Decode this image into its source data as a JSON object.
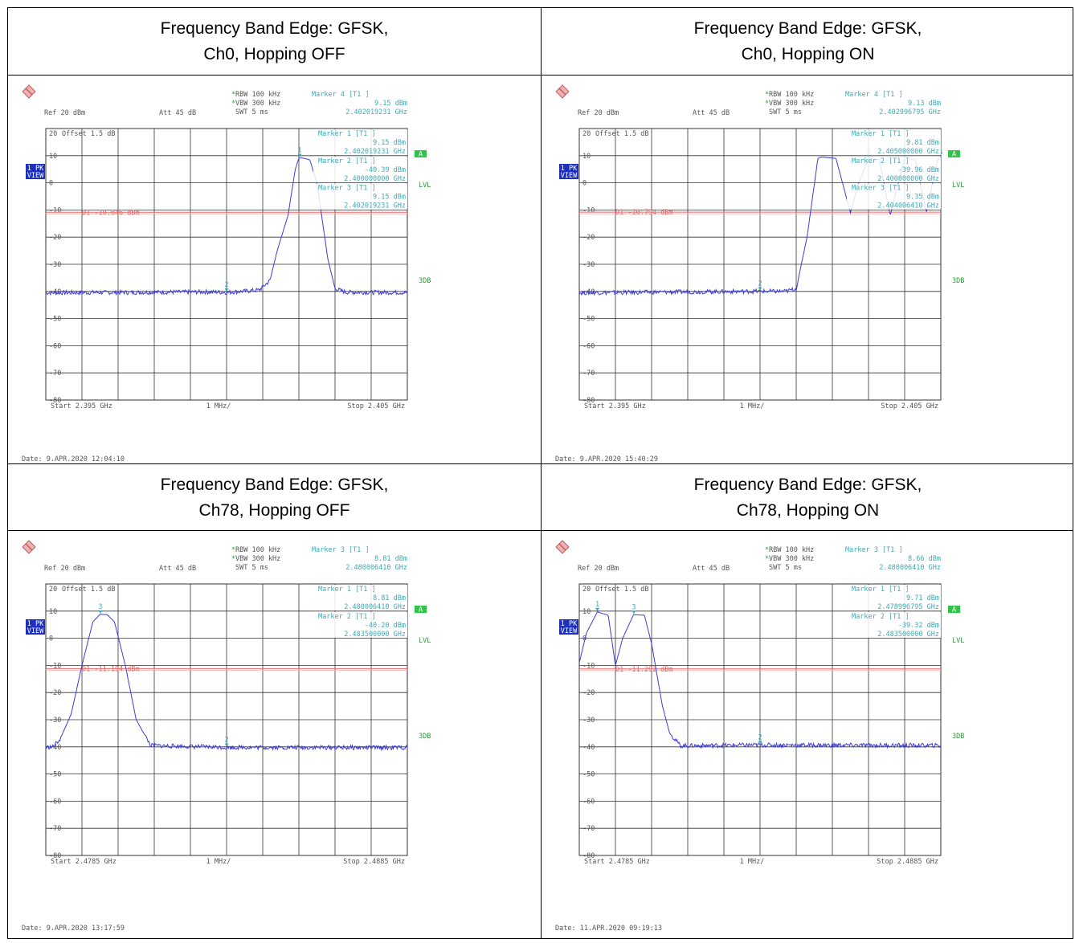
{
  "panels": [
    {
      "title_line1": "Frequency Band Edge: GFSK,",
      "title_line2": "Ch0, Hopping OFF",
      "date": "Date: 9.APR.2020  12:04:10",
      "rbw": "RBW 100 kHz",
      "vbw": "VBW 300 kHz",
      "swt": "SWT 5 ms",
      "ref": "Ref  20 dBm",
      "att": "Att  45 dB",
      "offset": "Offset  1.5 dB",
      "start": "Start  2.395 GHz",
      "span_div": "1 MHz/",
      "stop": "Stop  2.405 GHz",
      "d1_label": "D1  -10.846 dBm",
      "markers": [
        {
          "label": "Marker 4 [T1 ]",
          "level": "9.15 dBm",
          "freq": "2.402019231 GHz"
        },
        {
          "label": "Marker 1 [T1 ]",
          "level": "9.15 dBm",
          "freq": "2.402019231 GHz"
        },
        {
          "label": "Marker 2 [T1 ]",
          "level": "-40.39 dBm",
          "freq": "2.400000000 GHz"
        },
        {
          "label": "Marker 3 [T1 ]",
          "level": "9.15 dBm",
          "freq": "2.402019231 GHz"
        }
      ],
      "ylabels": [
        "20",
        "10",
        "0",
        "-10",
        "-20",
        "-30",
        "-40",
        "-50",
        "-60",
        "-70",
        "-80"
      ],
      "side_lvl": "LVL",
      "side_3db": "3DB",
      "side_a": "A",
      "pk1": "1 PK",
      "pk2": "VIEW",
      "chart_data": {
        "type": "line",
        "xlim": [
          2.395,
          2.405
        ],
        "ylim": [
          -80,
          20
        ],
        "d1": -10.846,
        "x": [
          2.395,
          2.3995,
          2.4,
          2.4009,
          2.4012,
          2.4014,
          2.4017,
          2.4019,
          2.402,
          2.4021,
          2.4023,
          2.4025,
          2.4028,
          2.403,
          2.4033,
          2.405
        ],
        "y": [
          -40.5,
          -40.2,
          -40.39,
          -39.5,
          -36,
          -25,
          -12,
          5,
          9.1,
          9.15,
          8.5,
          0,
          -28,
          -39,
          -40.3,
          -40.4
        ],
        "marker_points": [
          {
            "n": "2",
            "x": 2.4,
            "y": -40.39
          },
          {
            "n": "1",
            "x": 2.40202,
            "y": 9.15
          }
        ]
      }
    },
    {
      "title_line1": "Frequency Band Edge: GFSK,",
      "title_line2": "Ch0, Hopping ON",
      "date": "Date: 9.APR.2020  15:40:29",
      "rbw": "RBW 100 kHz",
      "vbw": "VBW 300 kHz",
      "swt": "SWT 5 ms",
      "ref": "Ref  20 dBm",
      "att": "Att  45 dB",
      "offset": "Offset  1.5 dB",
      "start": "Start  2.395 GHz",
      "span_div": "1 MHz/",
      "stop": "Stop  2.405 GHz",
      "d1_label": "D1  -10.794 dBm",
      "markers": [
        {
          "label": "Marker 4 [T1 ]",
          "level": "9.13 dBm",
          "freq": "2.402996795 GHz"
        },
        {
          "label": "Marker 1 [T1 ]",
          "level": "9.81 dBm",
          "freq": "2.405000000 GHz"
        },
        {
          "label": "Marker 2 [T1 ]",
          "level": "-39.96 dBm",
          "freq": "2.400000000 GHz"
        },
        {
          "label": "Marker 3 [T1 ]",
          "level": "9.35 dBm",
          "freq": "2.404006410 GHz"
        }
      ],
      "ylabels": [
        "20",
        "10",
        "0",
        "-10",
        "-20",
        "-30",
        "-40",
        "-50",
        "-60",
        "-70",
        "-80"
      ],
      "side_lvl": "LVL",
      "side_3db": "3DB",
      "side_a": "A",
      "pk1": "1 PK",
      "pk2": "VIEW",
      "chart_data": {
        "type": "line",
        "xlim": [
          2.395,
          2.405
        ],
        "ylim": [
          -80,
          20
        ],
        "d1": -10.794,
        "x": [
          2.395,
          2.4,
          2.4007,
          2.401,
          2.4013,
          2.4016,
          2.4017,
          2.4021,
          2.4025,
          2.4027,
          2.403,
          2.4033,
          2.4036,
          2.404,
          2.4043,
          2.4046,
          2.4049,
          2.405
        ],
        "y": [
          -40.5,
          -39.96,
          -40,
          -39,
          -20,
          9,
          9.5,
          9,
          -11,
          -1,
          9.1,
          8.5,
          -12,
          9.35,
          8.5,
          -11,
          8,
          9.81
        ],
        "marker_points": [
          {
            "n": "2",
            "x": 2.4,
            "y": -39.96
          },
          {
            "n": "4",
            "x": 2.403,
            "y": 9.13
          },
          {
            "n": "3",
            "x": 2.404,
            "y": 9.35
          },
          {
            "n": "1",
            "x": 2.405,
            "y": 9.81
          }
        ]
      }
    },
    {
      "title_line1": "Frequency Band Edge: GFSK,",
      "title_line2": "Ch78, Hopping OFF",
      "date": "Date: 9.APR.2020  13:17:59",
      "rbw": "RBW 100 kHz",
      "vbw": "VBW 300 kHz",
      "swt": "SWT 5 ms",
      "ref": "Ref  20 dBm",
      "att": "Att  45 dB",
      "offset": "Offset  1.5 dB",
      "start": "Start  2.4785 GHz",
      "span_div": "1 MHz/",
      "stop": "Stop  2.4885 GHz",
      "d1_label": "D1  -11.194 dBm",
      "markers": [
        {
          "label": "Marker 3 [T1 ]",
          "level": "8.81 dBm",
          "freq": "2.480006410 GHz"
        },
        {
          "label": "Marker 1 [T1 ]",
          "level": "8.81 dBm",
          "freq": "2.480006410 GHz"
        },
        {
          "label": "Marker 2 [T1 ]",
          "level": "-40.20 dBm",
          "freq": "2.483500000 GHz"
        }
      ],
      "ylabels": [
        "20",
        "10",
        "0",
        "-10",
        "-20",
        "-30",
        "-40",
        "-50",
        "-60",
        "-70",
        "-80"
      ],
      "side_lvl": "LVL",
      "side_3db": "3DB",
      "side_a": "A",
      "pk1": "1 PK",
      "pk2": "VIEW",
      "chart_data": {
        "type": "line",
        "xlim": [
          2.4785,
          2.4885
        ],
        "ylim": [
          -80,
          20
        ],
        "d1": -11.194,
        "x": [
          2.4785,
          2.4787,
          2.4789,
          2.4792,
          2.4795,
          2.4798,
          2.48,
          2.4802,
          2.4804,
          2.4807,
          2.481,
          2.4814,
          2.4835,
          2.4885
        ],
        "y": [
          -40.2,
          -40,
          -37,
          -28,
          -10,
          6,
          8.81,
          8.7,
          6,
          -10,
          -30,
          -39.5,
          -40.2,
          -40.3
        ],
        "marker_points": [
          {
            "n": "3",
            "x": 2.48001,
            "y": 8.81
          },
          {
            "n": "2",
            "x": 2.4835,
            "y": -40.2
          }
        ]
      }
    },
    {
      "title_line1": "Frequency Band Edge: GFSK,",
      "title_line2": "Ch78, Hopping ON",
      "date": "Date: 11.APR.2020  09:19:13",
      "rbw": "RBW 100 kHz",
      "vbw": "VBW 300 kHz",
      "swt": "SWT 5 ms",
      "ref": "Ref  20 dBm",
      "att": "Att  45 dB",
      "offset": "Offset  1.5 dB",
      "start": "Start  2.4785 GHz",
      "span_div": "1 MHz/",
      "stop": "Stop  2.4885 GHz",
      "d1_label": "D1  -11.292 dBm",
      "markers": [
        {
          "label": "Marker 3 [T1 ]",
          "level": "8.66 dBm",
          "freq": "2.480006410 GHz"
        },
        {
          "label": "Marker 1 [T1 ]",
          "level": "9.71 dBm",
          "freq": "2.478996795 GHz"
        },
        {
          "label": "Marker 2 [T1 ]",
          "level": "-39.32 dBm",
          "freq": "2.483500000 GHz"
        }
      ],
      "ylabels": [
        "20",
        "10",
        "0",
        "-10",
        "-20",
        "-30",
        "-40",
        "-50",
        "-60",
        "-70",
        "-80"
      ],
      "side_lvl": "LVL",
      "side_3db": "3DB",
      "side_a": "A",
      "pk1": "1 PK",
      "pk2": "VIEW",
      "chart_data": {
        "type": "line",
        "xlim": [
          2.4785,
          2.4885
        ],
        "ylim": [
          -80,
          20
        ],
        "d1": -11.292,
        "x": [
          2.4785,
          2.4787,
          2.479,
          2.4793,
          2.4795,
          2.4797,
          2.48,
          2.4803,
          2.4805,
          2.4808,
          2.481,
          2.4813,
          2.4835,
          2.4885
        ],
        "y": [
          -9,
          2,
          9.71,
          8.5,
          -10,
          0,
          8.66,
          8.5,
          -2,
          -25,
          -35,
          -39.6,
          -39.32,
          -39.5
        ],
        "marker_points": [
          {
            "n": "1",
            "x": 2.479,
            "y": 9.71
          },
          {
            "n": "3",
            "x": 2.48001,
            "y": 8.66
          },
          {
            "n": "2",
            "x": 2.4835,
            "y": -39.32
          }
        ]
      }
    }
  ]
}
